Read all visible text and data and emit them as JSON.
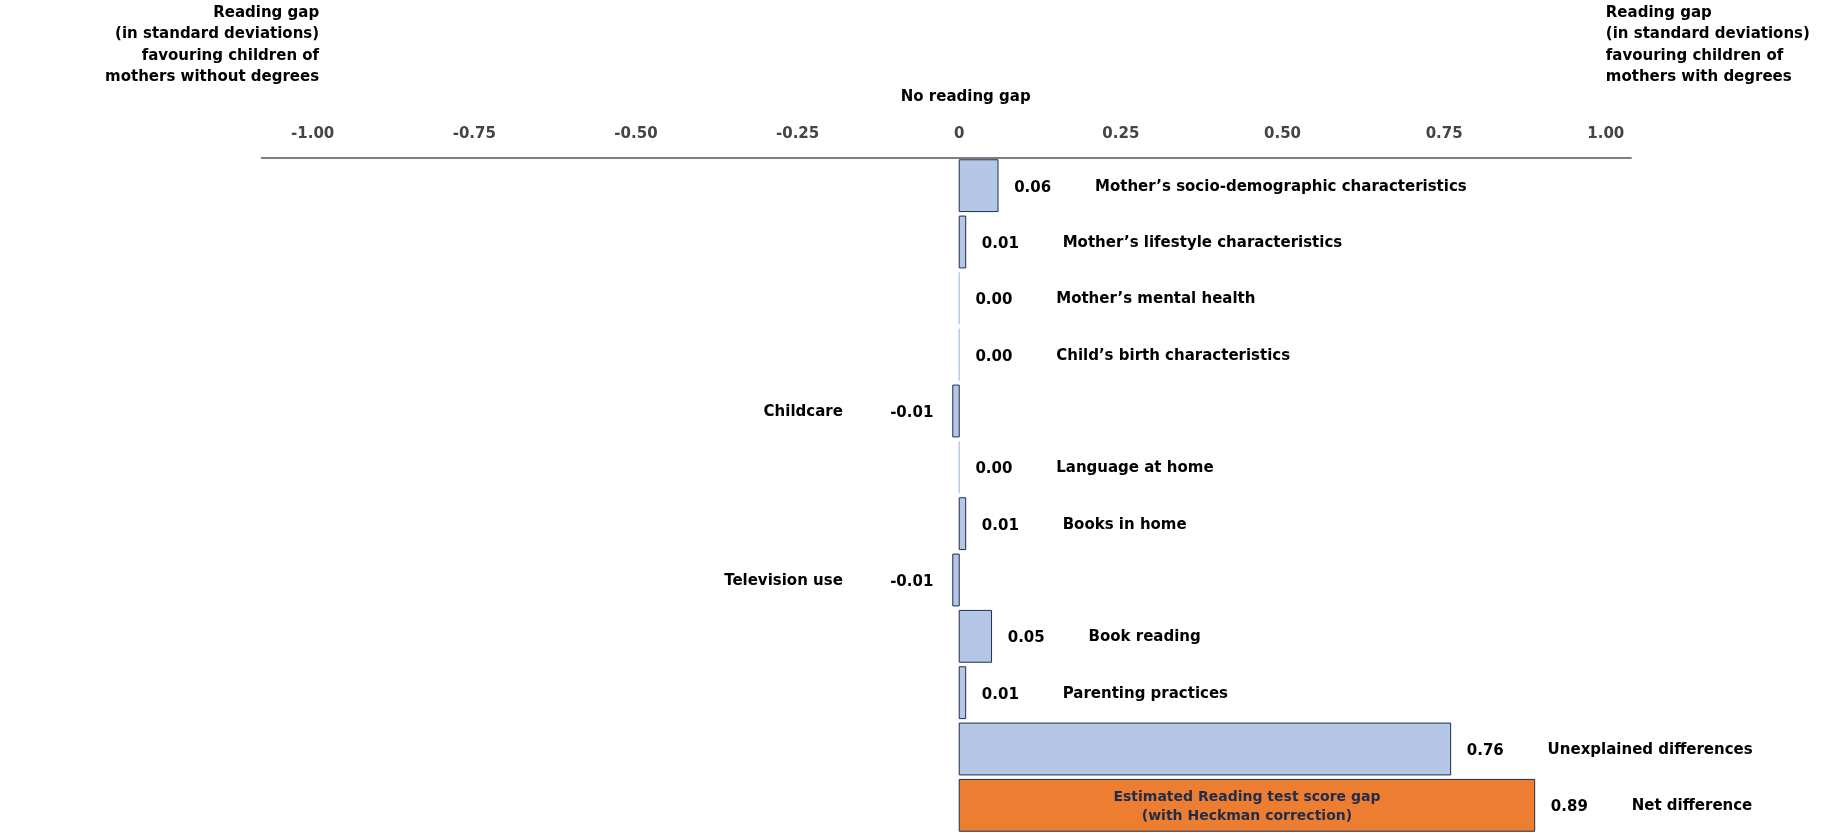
{
  "chart_data": {
    "type": "bar",
    "orientation": "horizontal",
    "categories": [
      "Mother’s socio-demographic characteristics",
      "Mother’s lifestyle characteristics",
      "Mother’s mental health",
      "Child’s birth characteristics",
      "Childcare",
      "Language at home",
      "Books in home",
      "Television use",
      "Book reading",
      "Parenting practices",
      "Unexplained differences",
      "Net difference"
    ],
    "values": [
      0.06,
      0.01,
      0.0,
      0.0,
      -0.01,
      0.0,
      0.01,
      -0.01,
      0.05,
      0.01,
      0.76,
      0.89
    ],
    "value_labels": [
      "0.06",
      "0.01",
      "0.00",
      "0.00",
      "-0.01",
      "0.00",
      "0.01",
      "-0.01",
      "0.05",
      "0.01",
      "0.76",
      "0.89"
    ],
    "colors": [
      "#b4c7e7",
      "#b4c7e7",
      "#b4c7e7",
      "#b4c7e7",
      "#b4c7e7",
      "#b4c7e7",
      "#b4c7e7",
      "#b4c7e7",
      "#b4c7e7",
      "#b4c7e7",
      "#b4c7e7",
      "#ed7d31"
    ],
    "xlim": [
      -1.08,
      1.04
    ],
    "xticks": [
      {
        "value": -1,
        "label": "-1.00"
      },
      {
        "value": -0.75,
        "label": "-0.75"
      },
      {
        "value": -0.5,
        "label": "-0.50"
      },
      {
        "value": -0.25,
        "label": "-0.25"
      },
      0,
      {
        "value": 0.25,
        "label": "0.25"
      },
      {
        "value": 0.5,
        "label": "0.50"
      },
      {
        "value": 0.75,
        "label": "0.75"
      },
      {
        "value": 1,
        "label": "1.00"
      }
    ],
    "annotations": [
      "Reading gap\n(in standard deviations)\nfavouring children of\nmothers without degrees",
      "Reading gap\n(in standard deviations)\nfavouring children of\nmothers with degrees",
      "No reading gap",
      "Estimated Reading test score gap\n(with Heckman correction)"
    ],
    "grid": false
  }
}
